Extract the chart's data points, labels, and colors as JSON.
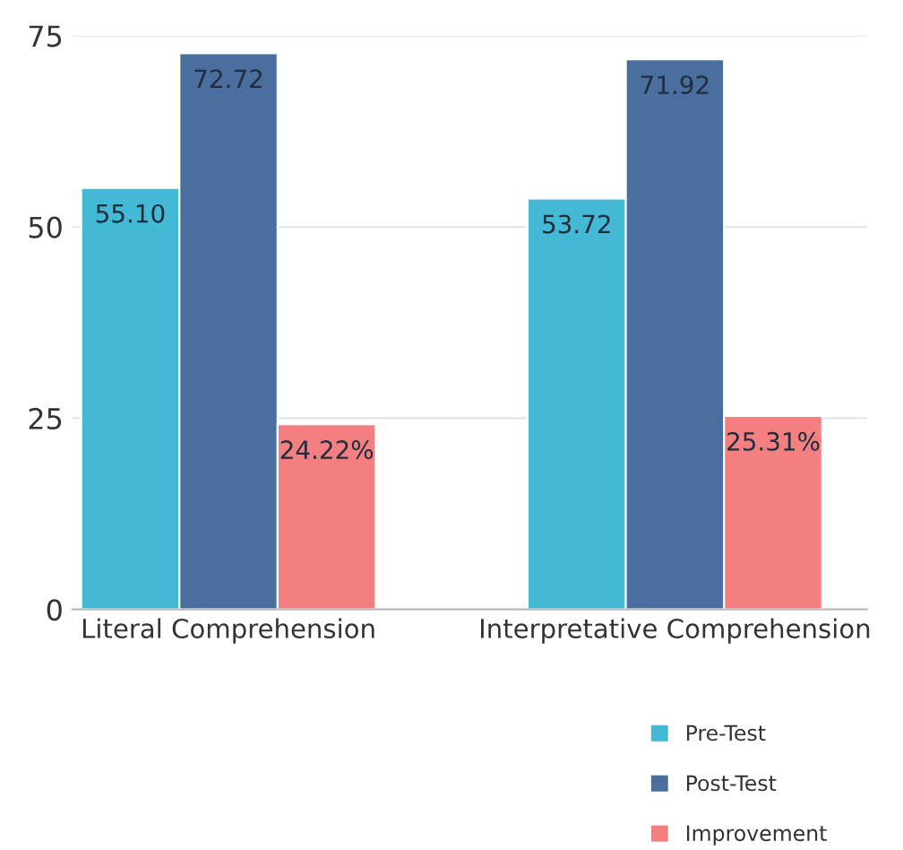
{
  "chart_data": {
    "type": "bar",
    "categories": [
      "Literal Comprehension",
      "Interpretative Comprehension"
    ],
    "series": [
      {
        "name": "Pre-Test",
        "color": "#44b9d6",
        "values": [
          55.1,
          53.72
        ],
        "value_labels": [
          "55.10",
          "53.72"
        ]
      },
      {
        "name": "Post-Test",
        "color": "#4a6f9e",
        "values": [
          72.72,
          71.92
        ],
        "value_labels": [
          "72.72",
          "71.92"
        ]
      },
      {
        "name": "Improvement",
        "color": "#f47f80",
        "values": [
          24.22,
          25.31
        ],
        "value_labels": [
          "24.22%",
          "25.31%"
        ]
      }
    ],
    "ylim": [
      0,
      75
    ],
    "yticks": [
      0,
      25,
      50,
      75
    ],
    "grid": "y",
    "legend": "bottom right"
  }
}
